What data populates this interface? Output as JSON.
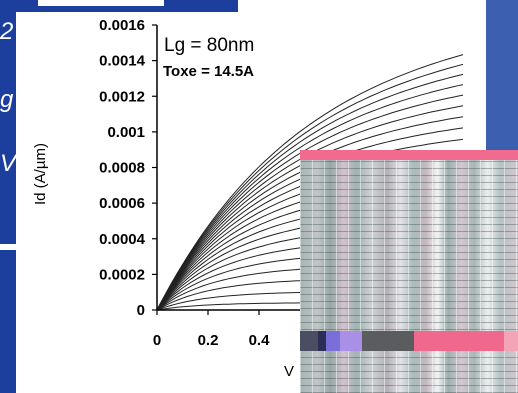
{
  "slide_fragments": [
    "2",
    "g",
    "V"
  ],
  "chart_data": {
    "type": "line",
    "title": "",
    "xlabel": "V",
    "ylabel": "Id (A/µm)",
    "xlim": [
      0,
      1.2
    ],
    "ylim": [
      0,
      0.0016
    ],
    "x_ticks": [
      "0",
      "0.2",
      "0.4",
      "0"
    ],
    "y_ticks": [
      "0",
      "0.0002",
      "0.0004",
      "0.0006",
      "0.0008",
      "0.001",
      "0.0012",
      "0.0014",
      "0.0016"
    ],
    "annotations": [
      "Lg = 80nm",
      "Toxe = 14.5A"
    ],
    "grid": false,
    "legend": "none",
    "curve_end_values": [
      0.0015,
      0.00143,
      0.00136,
      0.00129,
      0.00122,
      0.00115,
      0.00108,
      0.00101,
      0.00094,
      0.00087,
      0.0008,
      0.00073,
      0.00066,
      0.00059,
      0.00052,
      0.00045,
      0.00038,
      0.00031,
      0.00024,
      0.00017,
      0.0001,
      4e-05
    ]
  }
}
